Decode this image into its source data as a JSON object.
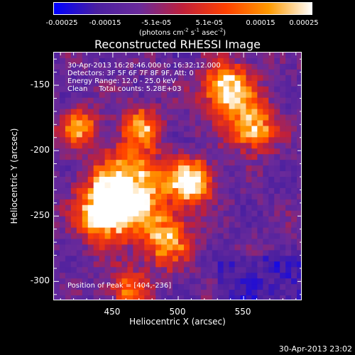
{
  "chart_data": {
    "type": "heatmap",
    "title": "Reconstructed RHESSI Image",
    "xlabel": "Heliocentric X (arcsec)",
    "ylabel": "Heliocentric Y (arcsec)",
    "xlim": [
      405,
      595
    ],
    "ylim": [
      -315,
      -125
    ],
    "x_ticks": [
      "450",
      "500",
      "550"
    ],
    "x_tick_values": [
      450,
      500,
      550
    ],
    "y_ticks": [
      "-150",
      "-200",
      "-250",
      "-300"
    ],
    "y_tick_values": [
      -150,
      -200,
      -250,
      -300
    ],
    "colorbar": {
      "range": [
        -0.00025,
        0.00025
      ],
      "tick_labels": [
        "-0.00025",
        "-0.00015",
        "-5.1e-05",
        "5.1e-05",
        "0.00015",
        "0.00025"
      ],
      "tick_values": [
        -0.00025,
        -0.00015,
        -5.1e-05,
        5.1e-05,
        0.00015,
        0.00025
      ],
      "units": "(photons cm-2 s-1 asec-2)",
      "colors": [
        "#0000ff",
        "#4a1fa0",
        "#6a2a9a",
        "#c0203a",
        "#ff4000",
        "#ff9a00",
        "#ffffff"
      ]
    },
    "annotations": [
      "30-Apr-2013 16:28:46.000 to 16:32:12.000",
      "Detectors: 3F 5F 6F 7F 8F 9F, Att: 0",
      "Energy Range: 12.0 - 25.0 keV",
      "Clean     Total counts: 5.28E+03"
    ],
    "peak_label": "Position of Peak = [404,-236]",
    "peak_position": [
      404,
      -236
    ]
  },
  "timestamp": "30-Apr-2013 23:02"
}
